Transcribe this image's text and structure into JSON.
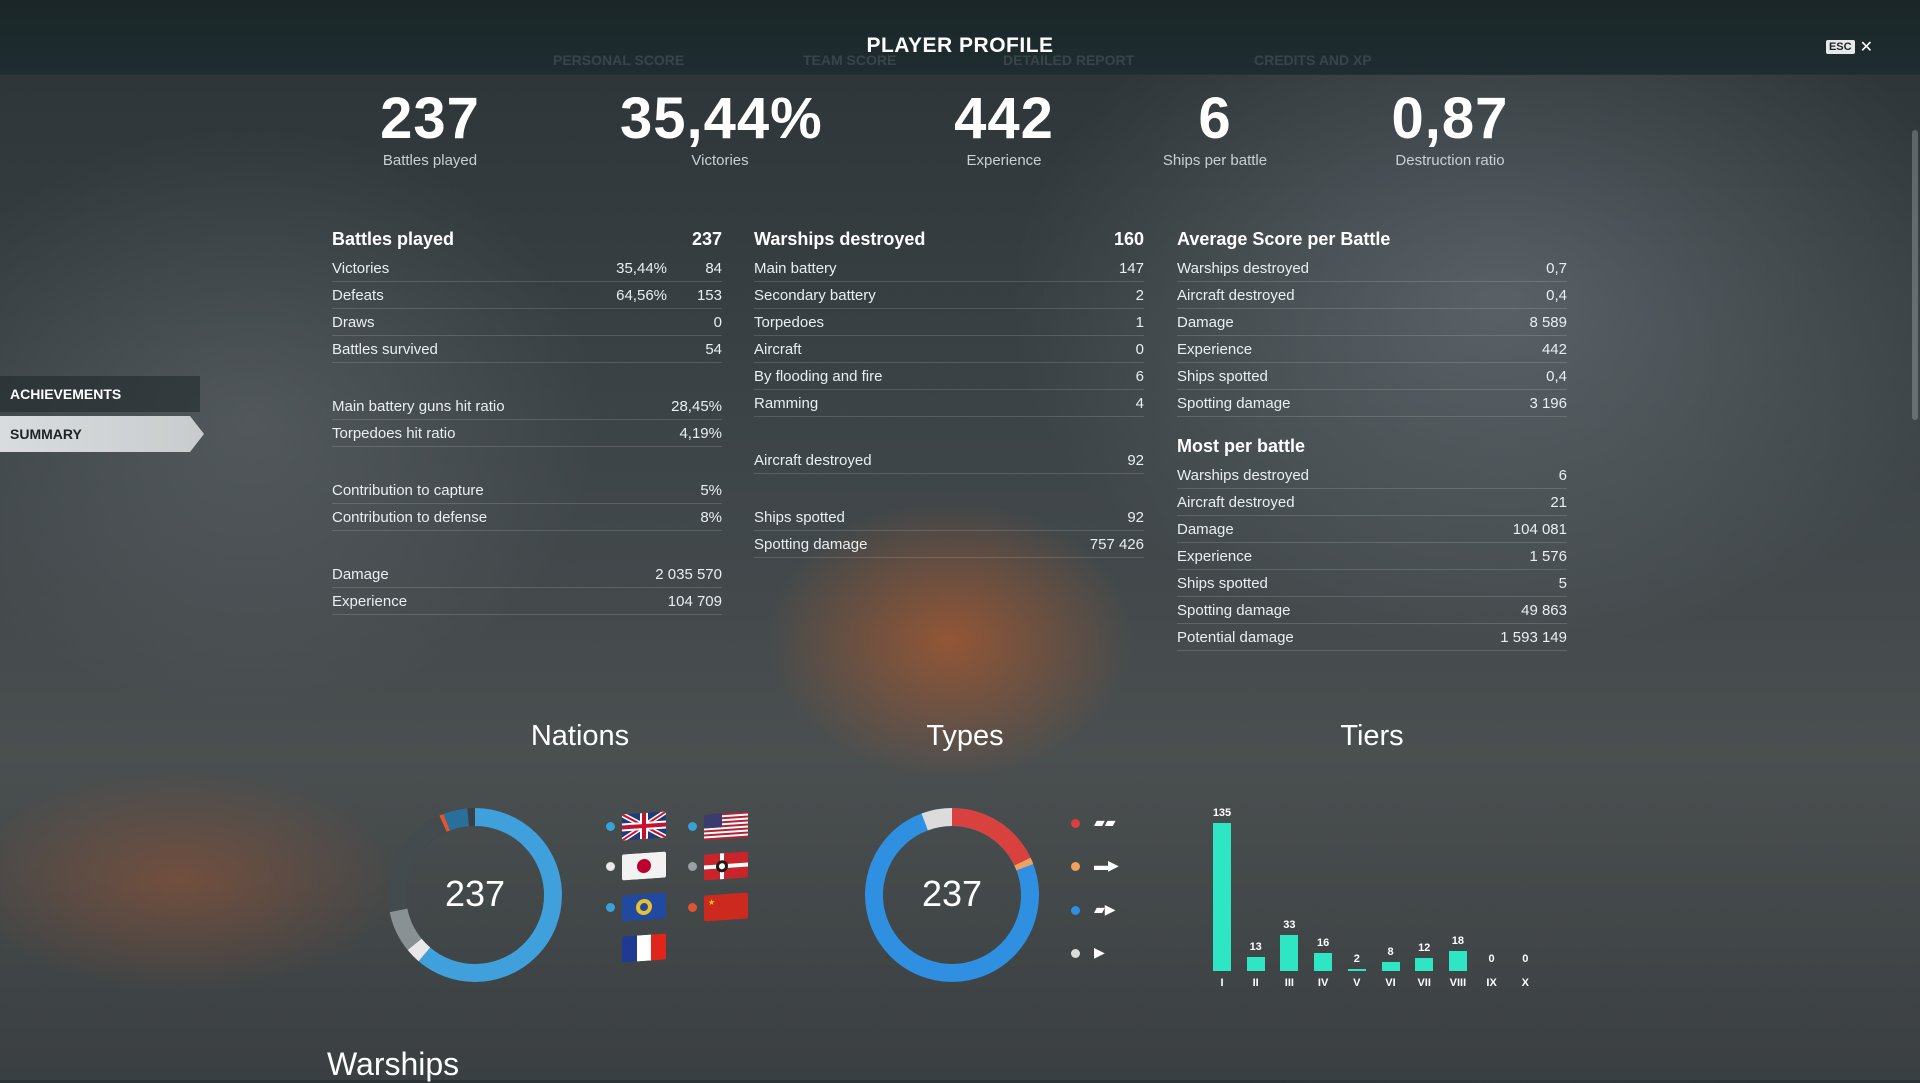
{
  "header": {
    "title": "PLAYER PROFILE",
    "faded_tabs": [
      "PERSONAL SCORE",
      "TEAM SCORE",
      "DETAILED REPORT",
      "CREDITS AND XP"
    ],
    "esc_label": "ESC",
    "close_symbol": "✕"
  },
  "summary": [
    {
      "value": "237",
      "label": "Battles played"
    },
    {
      "value": "35,44%",
      "label": "Victories"
    },
    {
      "value": "442",
      "label": "Experience"
    },
    {
      "value": "6",
      "label": "Ships per battle"
    },
    {
      "value": "0,87",
      "label": "Destruction ratio"
    }
  ],
  "sidebar": {
    "items": [
      {
        "label": "ACHIEVEMENTS",
        "active": false
      },
      {
        "label": "SUMMARY",
        "active": true
      }
    ]
  },
  "col1": {
    "head": {
      "label": "Battles played",
      "value": "237"
    },
    "g1": [
      {
        "label": "Victories",
        "pct": "35,44%",
        "value": "84"
      },
      {
        "label": "Defeats",
        "pct": "64,56%",
        "value": "153"
      },
      {
        "label": "Draws",
        "pct": "",
        "value": "0"
      },
      {
        "label": "Battles survived",
        "pct": "",
        "value": "54"
      }
    ],
    "g2": [
      {
        "label": "Main battery guns hit ratio",
        "value": "28,45%"
      },
      {
        "label": "Torpedoes hit ratio",
        "value": "4,19%"
      }
    ],
    "g3": [
      {
        "label": "Contribution to capture",
        "value": "5%"
      },
      {
        "label": "Contribution to defense",
        "value": "8%"
      }
    ],
    "g4": [
      {
        "label": "Damage",
        "value": "2 035 570"
      },
      {
        "label": "Experience",
        "value": "104 709"
      }
    ]
  },
  "col2": {
    "head": {
      "label": "Warships destroyed",
      "value": "160"
    },
    "g1": [
      {
        "label": "Main battery",
        "value": "147"
      },
      {
        "label": "Secondary battery",
        "value": "2"
      },
      {
        "label": "Torpedoes",
        "value": "1"
      },
      {
        "label": "Aircraft",
        "value": "0"
      },
      {
        "label": "By flooding and fire",
        "value": "6"
      },
      {
        "label": "Ramming",
        "value": "4"
      }
    ],
    "g2": [
      {
        "label": "Aircraft destroyed",
        "value": "92"
      }
    ],
    "g3": [
      {
        "label": "Ships spotted",
        "value": "92"
      },
      {
        "label": "Spotting damage",
        "value": "757 426"
      }
    ]
  },
  "col3": {
    "head1": {
      "label": "Average Score per Battle"
    },
    "g1": [
      {
        "label": "Warships destroyed",
        "value": "0,7"
      },
      {
        "label": "Aircraft destroyed",
        "value": "0,4"
      },
      {
        "label": "Damage",
        "value": "8 589"
      },
      {
        "label": "Experience",
        "value": "442"
      },
      {
        "label": "Ships spotted",
        "value": "0,4"
      },
      {
        "label": "Spotting damage",
        "value": "3 196"
      }
    ],
    "head2": {
      "label": "Most per battle"
    },
    "g2": [
      {
        "label": "Warships destroyed",
        "value": "6"
      },
      {
        "label": "Aircraft destroyed",
        "value": "21"
      },
      {
        "label": "Damage",
        "value": "104 081"
      },
      {
        "label": "Experience",
        "value": "1 576"
      },
      {
        "label": "Ships spotted",
        "value": "5"
      },
      {
        "label": "Spotting damage",
        "value": "49 863"
      },
      {
        "label": "Potential damage",
        "value": "1 593 149"
      }
    ]
  },
  "sections": {
    "nations": "Nations",
    "types": "Types",
    "tiers": "Tiers",
    "warships": "Warships"
  },
  "nations": {
    "center": "237",
    "flags": [
      {
        "icon": "uk-flag-icon",
        "dot": "#3aa0d8"
      },
      {
        "icon": "usa-flag-icon",
        "dot": "#3aa0d8"
      },
      {
        "icon": "japan-flag-icon",
        "dot": "#e8e8e8"
      },
      {
        "icon": "germany-flag-icon",
        "dot": "#9aa0a3"
      },
      {
        "icon": "pan-asia-flag-icon",
        "dot": "#3aa0d8"
      },
      {
        "icon": "ussr-flag-icon",
        "dot": "#e05530"
      },
      {
        "icon": "france-flag-icon",
        "dot": "#3a8fc8"
      }
    ]
  },
  "types": {
    "center": "237",
    "items": [
      {
        "icon": "aircraft-carrier-icon",
        "dot": "#d9413e"
      },
      {
        "icon": "battleship-icon",
        "dot": "#f0a060"
      },
      {
        "icon": "cruiser-icon",
        "dot": "#2f8fe0"
      },
      {
        "icon": "destroyer-icon",
        "dot": "#dcdcdc"
      }
    ]
  },
  "chart_data": {
    "type": "bar",
    "title": "Tiers",
    "categories": [
      "I",
      "II",
      "III",
      "IV",
      "V",
      "VI",
      "VII",
      "VIII",
      "IX",
      "X"
    ],
    "values": [
      135,
      13,
      33,
      16,
      2,
      8,
      12,
      18,
      0,
      0
    ],
    "color": "#2ee6c4"
  }
}
